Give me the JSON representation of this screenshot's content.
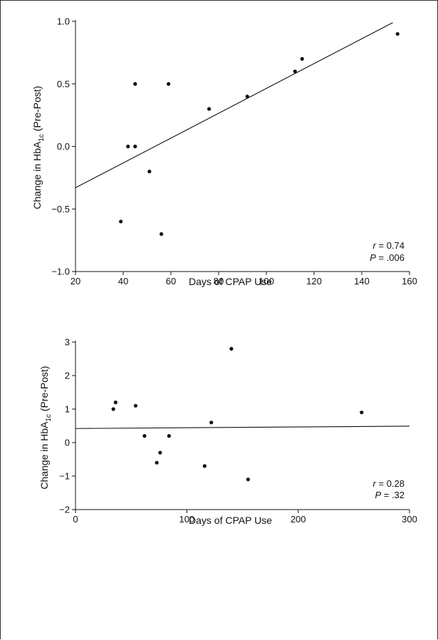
{
  "chart_data": [
    {
      "type": "scatter",
      "xlabel": "Days of CPAP Use",
      "ylabel_main": "Change in HbA",
      "ylabel_sub": "1c",
      "ylabel_tail": " (Pre-Post)",
      "xlim": [
        20,
        160
      ],
      "ylim": [
        -1.0,
        1.0
      ],
      "xticks": [
        "20",
        "40",
        "60",
        "80",
        "100",
        "120",
        "140",
        "160"
      ],
      "xtick_values": [
        20,
        40,
        60,
        80,
        100,
        120,
        140,
        160
      ],
      "yticks": [
        "−1.0",
        "−0.5",
        "0.0",
        "0.5",
        "1.0"
      ],
      "ytick_values": [
        -1.0,
        -0.5,
        0.0,
        0.5,
        1.0
      ],
      "points": [
        {
          "x": 39,
          "y": -0.6
        },
        {
          "x": 42,
          "y": 0.0
        },
        {
          "x": 45,
          "y": 0.0
        },
        {
          "x": 45,
          "y": 0.5
        },
        {
          "x": 51,
          "y": -0.2
        },
        {
          "x": 56,
          "y": -0.7
        },
        {
          "x": 59,
          "y": 0.5
        },
        {
          "x": 76,
          "y": 0.3
        },
        {
          "x": 92,
          "y": 0.4
        },
        {
          "x": 112,
          "y": 0.6
        },
        {
          "x": 115,
          "y": 0.7
        },
        {
          "x": 155,
          "y": 0.9
        }
      ],
      "fit_line": {
        "x1": 20,
        "y1": -0.33,
        "x2": 153,
        "y2": 0.99
      },
      "r_label": "r",
      "r_value": " = 0.74",
      "p_label": "P",
      "p_value": " = .006"
    },
    {
      "type": "scatter",
      "xlabel": "Days of CPAP Use",
      "ylabel_main": "Change in HbA",
      "ylabel_sub": "1c",
      "ylabel_tail": " (Pre-Post)",
      "xlim": [
        0,
        300
      ],
      "ylim": [
        -2,
        3
      ],
      "xticks": [
        "0",
        "100",
        "200",
        "300"
      ],
      "xtick_values": [
        0,
        100,
        200,
        300
      ],
      "yticks": [
        "−2",
        "−1",
        "0",
        "1",
        "2",
        "3"
      ],
      "ytick_values": [
        -2,
        -1,
        0,
        1,
        2,
        3
      ],
      "points": [
        {
          "x": 34,
          "y": 1.0
        },
        {
          "x": 36,
          "y": 1.2
        },
        {
          "x": 54,
          "y": 1.1
        },
        {
          "x": 62,
          "y": 0.2
        },
        {
          "x": 73,
          "y": -0.6
        },
        {
          "x": 76,
          "y": -0.3
        },
        {
          "x": 84,
          "y": 0.2
        },
        {
          "x": 116,
          "y": -0.7
        },
        {
          "x": 122,
          "y": 0.6
        },
        {
          "x": 140,
          "y": 2.8
        },
        {
          "x": 155,
          "y": -1.1
        },
        {
          "x": 257,
          "y": 0.9
        }
      ],
      "fit_line": {
        "x1": 0,
        "y1": 0.42,
        "x2": 300,
        "y2": 0.49
      },
      "r_label": "r",
      "r_value": " = 0.28",
      "p_label": "P",
      "p_value": " = .32"
    }
  ]
}
